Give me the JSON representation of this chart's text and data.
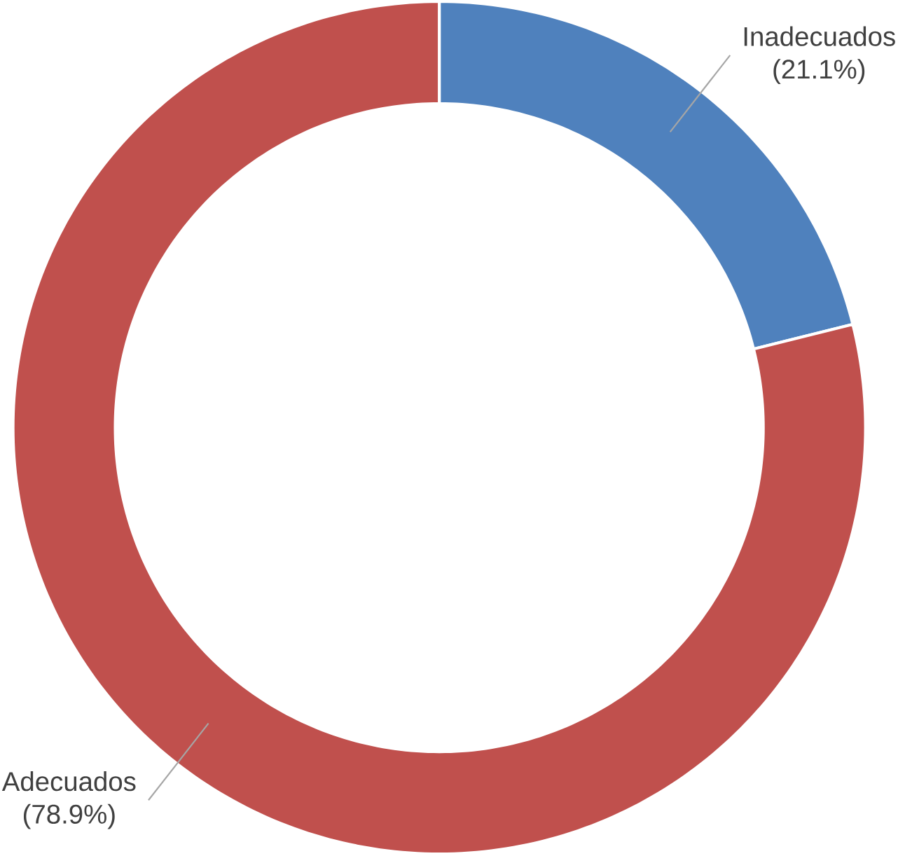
{
  "chart_data": {
    "type": "donut",
    "categories": [
      "Inadecuados",
      "Adecuados"
    ],
    "values": [
      21.1,
      78.9
    ],
    "colors": [
      "#4f81bd",
      "#c0504d"
    ],
    "value_labels": [
      "(21.1%)",
      "(78.9%)"
    ]
  }
}
